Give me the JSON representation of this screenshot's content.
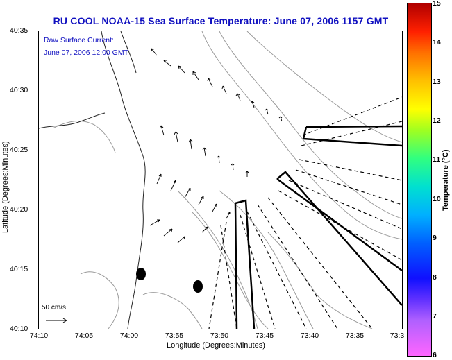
{
  "title": "RU COOL  NOAA-15  Sea Surface Temperature:  June 07, 2006 1157 GMT",
  "overlay": {
    "line1": "Raw Surface Current:",
    "line2": "June 07, 2006 12:00 GMT"
  },
  "axes": {
    "xlabel": "Longitude (Degrees:Minutes)",
    "ylabel": "Latitude (Degrees:Minutes)",
    "xticks": [
      "74:10",
      "74:05",
      "74:00",
      "73:55",
      "73:50",
      "73:45",
      "73:40",
      "73:35",
      "73:3"
    ],
    "yticks": [
      "40:35",
      "40:30",
      "40:25",
      "40:20",
      "40:15",
      "40:10"
    ]
  },
  "scale_label": "50 cm/s",
  "colorbar": {
    "title": "Temperature (°C)",
    "ticks": [
      "15",
      "14",
      "13",
      "12",
      "11",
      "10",
      "9",
      "8",
      "7",
      "6"
    ]
  },
  "colors": {
    "title": "#1010c0",
    "outline": "#000000",
    "contour": "#9a9a9a"
  }
}
